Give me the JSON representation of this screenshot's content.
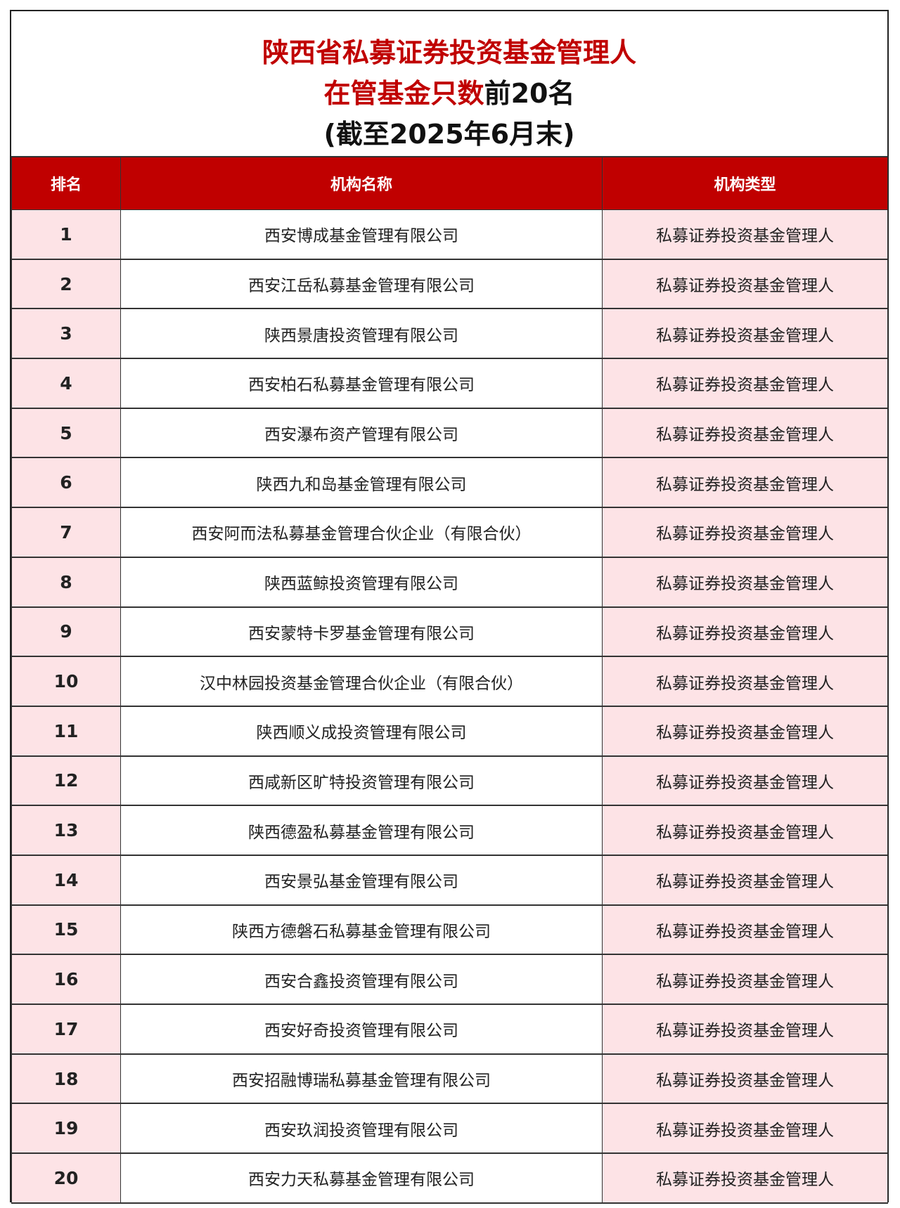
{
  "title": {
    "line1": "陕西省私募证券投资基金管理人",
    "line2_red": "在管基金只数",
    "line2_black": "前20名",
    "line3": "(截至2025年6月末)"
  },
  "colors": {
    "header_bg": "#c00000",
    "title_red": "#c00000",
    "pink_cell": "#fde3e6"
  },
  "table": {
    "headers": [
      "排名",
      "机构名称",
      "机构类型"
    ],
    "rows": [
      {
        "rank": "1",
        "name": "西安博成基金管理有限公司",
        "type": "私募证券投资基金管理人"
      },
      {
        "rank": "2",
        "name": "西安江岳私募基金管理有限公司",
        "type": "私募证券投资基金管理人"
      },
      {
        "rank": "3",
        "name": "陕西景唐投资管理有限公司",
        "type": "私募证券投资基金管理人"
      },
      {
        "rank": "4",
        "name": "西安柏石私募基金管理有限公司",
        "type": "私募证券投资基金管理人"
      },
      {
        "rank": "5",
        "name": "西安瀑布资产管理有限公司",
        "type": "私募证券投资基金管理人"
      },
      {
        "rank": "6",
        "name": "陕西九和岛基金管理有限公司",
        "type": "私募证券投资基金管理人"
      },
      {
        "rank": "7",
        "name": "西安阿而法私募基金管理合伙企业（有限合伙）",
        "type": "私募证券投资基金管理人"
      },
      {
        "rank": "8",
        "name": "陕西蓝鲸投资管理有限公司",
        "type": "私募证券投资基金管理人"
      },
      {
        "rank": "9",
        "name": "西安蒙特卡罗基金管理有限公司",
        "type": "私募证券投资基金管理人"
      },
      {
        "rank": "10",
        "name": "汉中林园投资基金管理合伙企业（有限合伙）",
        "type": "私募证券投资基金管理人"
      },
      {
        "rank": "11",
        "name": "陕西顺义成投资管理有限公司",
        "type": "私募证券投资基金管理人"
      },
      {
        "rank": "12",
        "name": "西咸新区旷特投资管理有限公司",
        "type": "私募证券投资基金管理人"
      },
      {
        "rank": "13",
        "name": "陕西德盈私募基金管理有限公司",
        "type": "私募证券投资基金管理人"
      },
      {
        "rank": "14",
        "name": "西安景弘基金管理有限公司",
        "type": "私募证券投资基金管理人"
      },
      {
        "rank": "15",
        "name": "陕西方德磐石私募基金管理有限公司",
        "type": "私募证券投资基金管理人"
      },
      {
        "rank": "16",
        "name": "西安合鑫投资管理有限公司",
        "type": "私募证券投资基金管理人"
      },
      {
        "rank": "17",
        "name": "西安好奇投资管理有限公司",
        "type": "私募证券投资基金管理人"
      },
      {
        "rank": "18",
        "name": "西安招融博瑞私募基金管理有限公司",
        "type": "私募证券投资基金管理人"
      },
      {
        "rank": "19",
        "name": "西安玖润投资管理有限公司",
        "type": "私募证券投资基金管理人"
      },
      {
        "rank": "20",
        "name": "西安力天私募基金管理有限公司",
        "type": "私募证券投资基金管理人"
      }
    ]
  }
}
